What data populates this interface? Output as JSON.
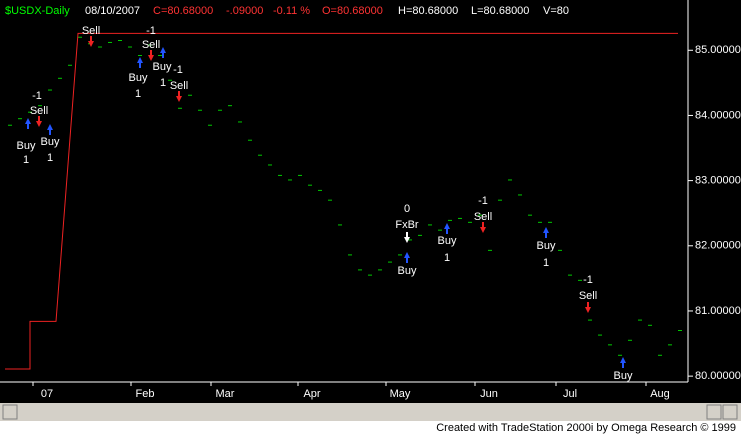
{
  "header": {
    "symbol": "$USDX-Daily",
    "date": "08/10/2007",
    "close": "C=80.68000",
    "change": "-.09000",
    "change_pct": "-0.11 %",
    "open": "O=80.68000",
    "high": "H=80.68000",
    "low": "L=80.68000",
    "volume": "V=80"
  },
  "chart_data": {
    "type": "line",
    "color": "#00cc00",
    "values": [
      83.85,
      83.95,
      84.05,
      84.15,
      84.39,
      84.57,
      84.77,
      85.2,
      85.1,
      85.05,
      85.12,
      85.15,
      85.05,
      84.92,
      85.08,
      84.92,
      84.54,
      84.11,
      84.31,
      84.08,
      83.85,
      84.08,
      84.15,
      83.9,
      83.62,
      83.39,
      83.24,
      83.08,
      83.01,
      83.08,
      82.93,
      82.85,
      82.7,
      82.32,
      81.86,
      81.63,
      81.55,
      81.63,
      81.75,
      81.86,
      82.09,
      82.16,
      82.32,
      82.24,
      82.39,
      82.42,
      82.36,
      82.47,
      81.93,
      82.7,
      83.01,
      82.78,
      82.47,
      82.36,
      82.36,
      81.93,
      81.55,
      81.47,
      80.86,
      80.63,
      80.48,
      80.32,
      80.55,
      80.86,
      80.78,
      80.32,
      80.48,
      80.7
    ],
    "equity": {
      "color": "#ee2222",
      "values": [
        80.11,
        80.11,
        80.84,
        80.84,
        85.26,
        85.26
      ]
    },
    "ylim": [
      79.91,
      85.71
    ],
    "yticks": [
      {
        "value": 80,
        "label": "80.00000"
      },
      {
        "value": 81,
        "label": "81.00000"
      },
      {
        "value": 82,
        "label": "82.00000"
      },
      {
        "value": 83,
        "label": "83.00000"
      },
      {
        "value": 84,
        "label": "84.00000"
      },
      {
        "value": 85,
        "label": "85.00000"
      }
    ],
    "months": [
      "07",
      "Feb",
      "Mar",
      "Apr",
      "May",
      "Jun",
      "Jul",
      "Aug"
    ],
    "annotations": [
      "-1",
      "Sell",
      "Buy",
      "1",
      "Buy",
      "1",
      "Sell",
      "Buy",
      "1",
      "-1",
      "Sell",
      "Buy",
      "1",
      "-1",
      "Sell",
      "0",
      "FxBr",
      "Buy",
      "-1",
      "Sell",
      "Buy",
      "1",
      "Buy",
      "1",
      "-1",
      "Sell",
      "Buy"
    ]
  },
  "footer": "Created with TradeStation 2000i by Omega Research © 1999"
}
